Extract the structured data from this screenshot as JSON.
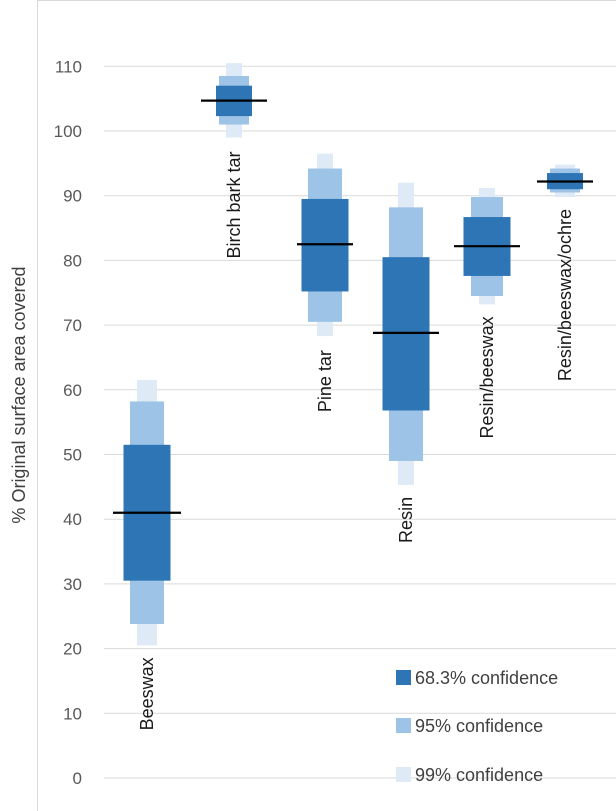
{
  "chart_data": {
    "type": "bar",
    "ylabel": "% Original surface area covered",
    "ylim": [
      0,
      115
    ],
    "yticks": [
      0,
      10,
      20,
      30,
      40,
      50,
      60,
      70,
      80,
      90,
      100,
      110
    ],
    "grid": true,
    "legend_position": "bottom-right",
    "categories": [
      "Beeswax",
      "Birch bark tar",
      "Pine tar",
      "Resin",
      "Resin/beeswax",
      "Resin/beeswax/ochre"
    ],
    "series": [
      {
        "name": "68.3% confidence",
        "color": "#2e75b6",
        "low": [
          30.5,
          102.3,
          75.2,
          56.8,
          77.6,
          91.0
        ],
        "high": [
          51.5,
          107.0,
          89.5,
          80.5,
          86.7,
          93.5
        ]
      },
      {
        "name": "95% confidence",
        "color": "#9dc3e6",
        "low": [
          23.8,
          101.0,
          70.5,
          49.0,
          74.5,
          90.5
        ],
        "high": [
          58.2,
          108.5,
          94.2,
          88.2,
          89.8,
          94.2
        ]
      },
      {
        "name": "99% confidence",
        "color": "#deebf7",
        "low": [
          20.5,
          99.0,
          68.3,
          45.3,
          73.2,
          89.8
        ],
        "high": [
          61.5,
          110.5,
          96.5,
          92.0,
          91.2,
          94.8
        ]
      }
    ],
    "mean": [
      41.0,
      104.7,
      82.5,
      68.8,
      82.2,
      92.2
    ],
    "mean_color": "#000000"
  }
}
